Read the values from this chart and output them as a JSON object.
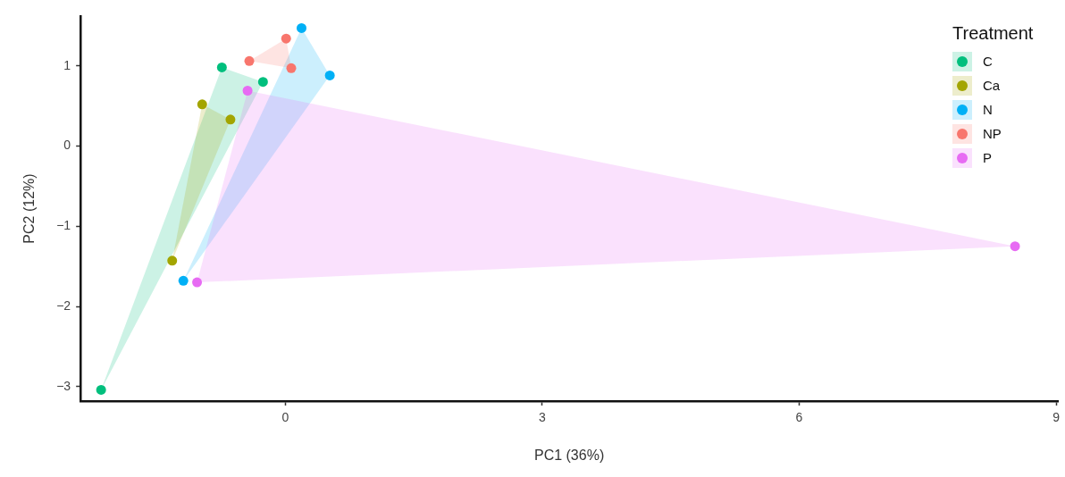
{
  "chart_data": {
    "type": "scatter",
    "xlabel": "PC1 (36%)",
    "ylabel": "PC2 (12%)",
    "legend_title": "Treatment",
    "legend": "top right",
    "grid": false,
    "marker": "circle",
    "xlim": [
      -2.39,
      9.02
    ],
    "xticks": [
      0,
      3,
      6,
      9
    ],
    "ylim": [
      -3.18,
      1.62
    ],
    "yticks": [
      -3,
      -2,
      -1,
      0,
      1
    ],
    "series": [
      {
        "name": "C",
        "color": "#00bf7d",
        "x": [
          -0.74,
          -0.26,
          -2.15
        ],
        "values": [
          0.98,
          0.8,
          -3.04
        ]
      },
      {
        "name": "Ca",
        "color": "#a3a500",
        "x": [
          -0.97,
          -0.64,
          -1.32
        ],
        "values": [
          0.52,
          0.33,
          -1.43
        ]
      },
      {
        "name": "N",
        "color": "#00b0f6",
        "x": [
          0.19,
          0.52,
          -1.19
        ],
        "values": [
          1.47,
          0.88,
          -1.68
        ]
      },
      {
        "name": "NP",
        "color": "#f8766d",
        "x": [
          -0.42,
          0.01,
          0.07
        ],
        "values": [
          1.06,
          1.34,
          0.97
        ]
      },
      {
        "name": "P",
        "color": "#e76bf3",
        "x": [
          -0.44,
          -1.03,
          8.52
        ],
        "values": [
          0.69,
          -1.7,
          -1.25
        ]
      }
    ]
  }
}
